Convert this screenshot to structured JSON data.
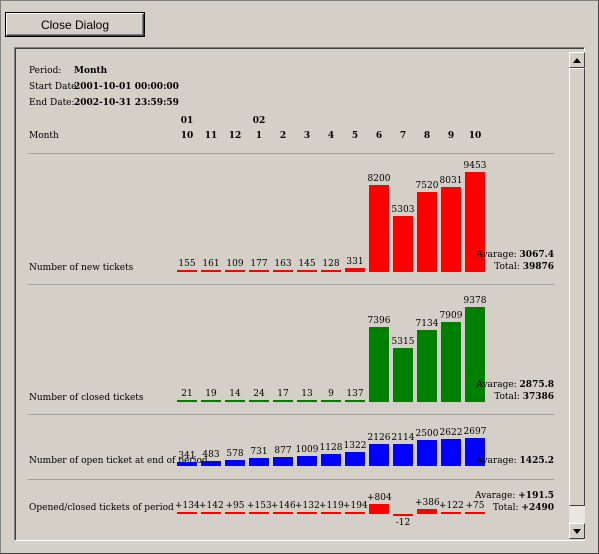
{
  "dialog": {
    "close_label": "Close Dialog"
  },
  "info": {
    "period_label": "Period:",
    "period_value": "Month",
    "start_label": "Start Date:",
    "start_value": "2001-10-01 00:00:00",
    "end_label": "End Date:",
    "end_value": "2002-10-31 23:59:59"
  },
  "header": {
    "row_label": "Month",
    "year_marks": [
      {
        "col": 0,
        "text": "01"
      },
      {
        "col": 3,
        "text": "02"
      }
    ],
    "months": [
      "10",
      "11",
      "12",
      "1",
      "2",
      "3",
      "4",
      "5",
      "6",
      "7",
      "8",
      "9",
      "10"
    ]
  },
  "colors": {
    "new": "#ff0000",
    "closed": "#008000",
    "open": "#0000ff",
    "diff": "#ff0000"
  },
  "chart_data": [
    {
      "type": "bar",
      "name": "new",
      "title": "Number of new tickets",
      "categories": [
        "10",
        "11",
        "12",
        "1",
        "2",
        "3",
        "4",
        "5",
        "6",
        "7",
        "8",
        "9",
        "10"
      ],
      "values": [
        155,
        161,
        109,
        177,
        163,
        145,
        128,
        331,
        8200,
        5303,
        7520,
        8031,
        9453
      ],
      "average_label": "Avarage:",
      "average": "3067.4",
      "total_label": "Total:",
      "total": "39876"
    },
    {
      "type": "bar",
      "name": "closed",
      "title": "Number of closed tickets",
      "categories": [
        "10",
        "11",
        "12",
        "1",
        "2",
        "3",
        "4",
        "5",
        "6",
        "7",
        "8",
        "9",
        "10"
      ],
      "values": [
        21,
        19,
        14,
        24,
        17,
        13,
        9,
        137,
        7396,
        5315,
        7134,
        7909,
        9378
      ],
      "average_label": "Avarage:",
      "average": "2875.8",
      "total_label": "Total:",
      "total": "37386"
    },
    {
      "type": "bar",
      "name": "open",
      "title": "Number of open ticket at end of period",
      "categories": [
        "10",
        "11",
        "12",
        "1",
        "2",
        "3",
        "4",
        "5",
        "6",
        "7",
        "8",
        "9",
        "10"
      ],
      "values": [
        341,
        483,
        578,
        731,
        877,
        1009,
        1128,
        1322,
        2126,
        2114,
        2500,
        2622,
        2697
      ],
      "average_label": "Avarage:",
      "average": "1425.2"
    },
    {
      "type": "bar",
      "name": "diff",
      "title": "Opened/closed tickets of period",
      "categories": [
        "10",
        "11",
        "12",
        "1",
        "2",
        "3",
        "4",
        "5",
        "6",
        "7",
        "8",
        "9",
        "10"
      ],
      "values": [
        134,
        142,
        95,
        153,
        146,
        132,
        119,
        194,
        804,
        -12,
        386,
        122,
        75
      ],
      "value_labels": [
        "+134",
        "+142",
        "+95",
        "+153",
        "+146",
        "+132",
        "+119",
        "+194",
        "+804",
        "-12",
        "+386",
        "+122",
        "+75"
      ],
      "average_label": "Avarage:",
      "average": "+191.5",
      "total_label": "Total:",
      "total": "+2490"
    }
  ]
}
